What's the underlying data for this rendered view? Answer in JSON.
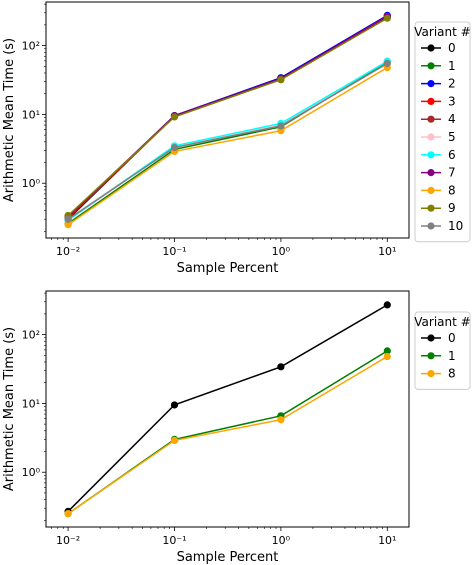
{
  "chart_data": [
    {
      "type": "line",
      "xlabel": "Sample Percent",
      "ylabel": "Arithmetic Mean Time (s)",
      "xscale": "log",
      "yscale": "log",
      "x": [
        0.01,
        0.1,
        1,
        10
      ],
      "xticks": [
        "10⁻²",
        "10⁻¹",
        "10⁰",
        "10¹"
      ],
      "yticks": [
        "10⁰",
        "10¹",
        "10²"
      ],
      "xlim": [
        0.0062,
        16
      ],
      "ylim": [
        0.16,
        430
      ],
      "legend": {
        "title": "Variant #",
        "position": "right"
      },
      "series": [
        {
          "name": "0",
          "color": "#000000",
          "values": [
            0.3,
            9.5,
            34,
            270
          ]
        },
        {
          "name": "1",
          "color": "#008000",
          "values": [
            0.26,
            3.1,
            6.6,
            58
          ]
        },
        {
          "name": "2",
          "color": "#0000ff",
          "values": [
            0.31,
            9.6,
            34,
            275
          ]
        },
        {
          "name": "3",
          "color": "#ff0000",
          "values": [
            0.31,
            9.4,
            33,
            265
          ]
        },
        {
          "name": "4",
          "color": "#a52a2a",
          "values": [
            0.32,
            9.3,
            32,
            255
          ]
        },
        {
          "name": "5",
          "color": "#ffc0cb",
          "values": [
            0.29,
            3.4,
            7.0,
            60
          ]
        },
        {
          "name": "6",
          "color": "#00ffff",
          "values": [
            0.29,
            3.5,
            7.4,
            59
          ]
        },
        {
          "name": "7",
          "color": "#800080",
          "values": [
            0.33,
            9.6,
            33,
            260
          ]
        },
        {
          "name": "8",
          "color": "#ffa500",
          "values": [
            0.25,
            2.9,
            5.8,
            48
          ]
        },
        {
          "name": "9",
          "color": "#808000",
          "values": [
            0.34,
            9.2,
            32,
            250
          ]
        },
        {
          "name": "10",
          "color": "#808080",
          "values": [
            0.3,
            3.3,
            6.8,
            55
          ]
        }
      ]
    },
    {
      "type": "line",
      "xlabel": "Sample Percent",
      "ylabel": "Arithmetic Mean Time (s)",
      "xscale": "log",
      "yscale": "log",
      "x": [
        0.01,
        0.1,
        1,
        10
      ],
      "xticks": [
        "10⁻²",
        "10⁻¹",
        "10⁰",
        "10¹"
      ],
      "yticks": [
        "10⁰",
        "10¹",
        "10²"
      ],
      "xlim": [
        0.0062,
        16
      ],
      "ylim": [
        0.16,
        430
      ],
      "legend": {
        "title": "Variant #",
        "position": "right"
      },
      "series": [
        {
          "name": "0",
          "color": "#000000",
          "values": [
            0.27,
            9.5,
            34,
            270
          ]
        },
        {
          "name": "1",
          "color": "#008000",
          "values": [
            0.25,
            3.0,
            6.6,
            58
          ]
        },
        {
          "name": "8",
          "color": "#ffa500",
          "values": [
            0.25,
            2.9,
            5.8,
            48
          ]
        }
      ]
    }
  ]
}
